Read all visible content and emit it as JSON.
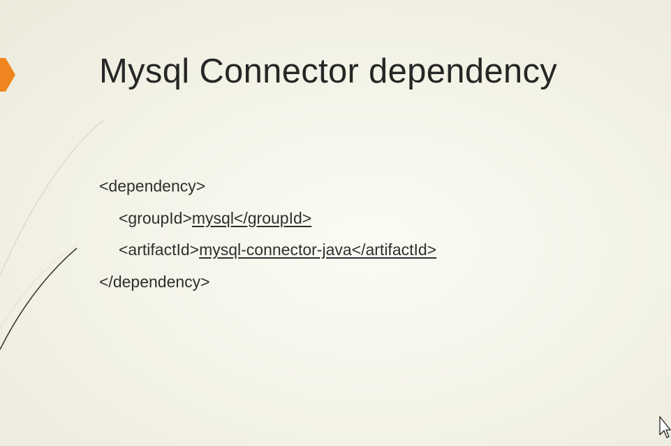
{
  "slide": {
    "title": "Mysql Connector dependency",
    "lines": {
      "open_tag": "<dependency>",
      "group_open": "<groupId>",
      "group_value": "mysql</groupId>",
      "artifact_open": "<artifactId>",
      "artifact_value": "mysql-connector-java</artifactId>",
      "close_tag": "</dependency>"
    }
  },
  "colors": {
    "accent": "#f0841e",
    "background": "#f4f3e8",
    "text": "#2a2a2a"
  },
  "icons": [
    "accent-chevron-icon",
    "mouse-cursor-icon"
  ]
}
